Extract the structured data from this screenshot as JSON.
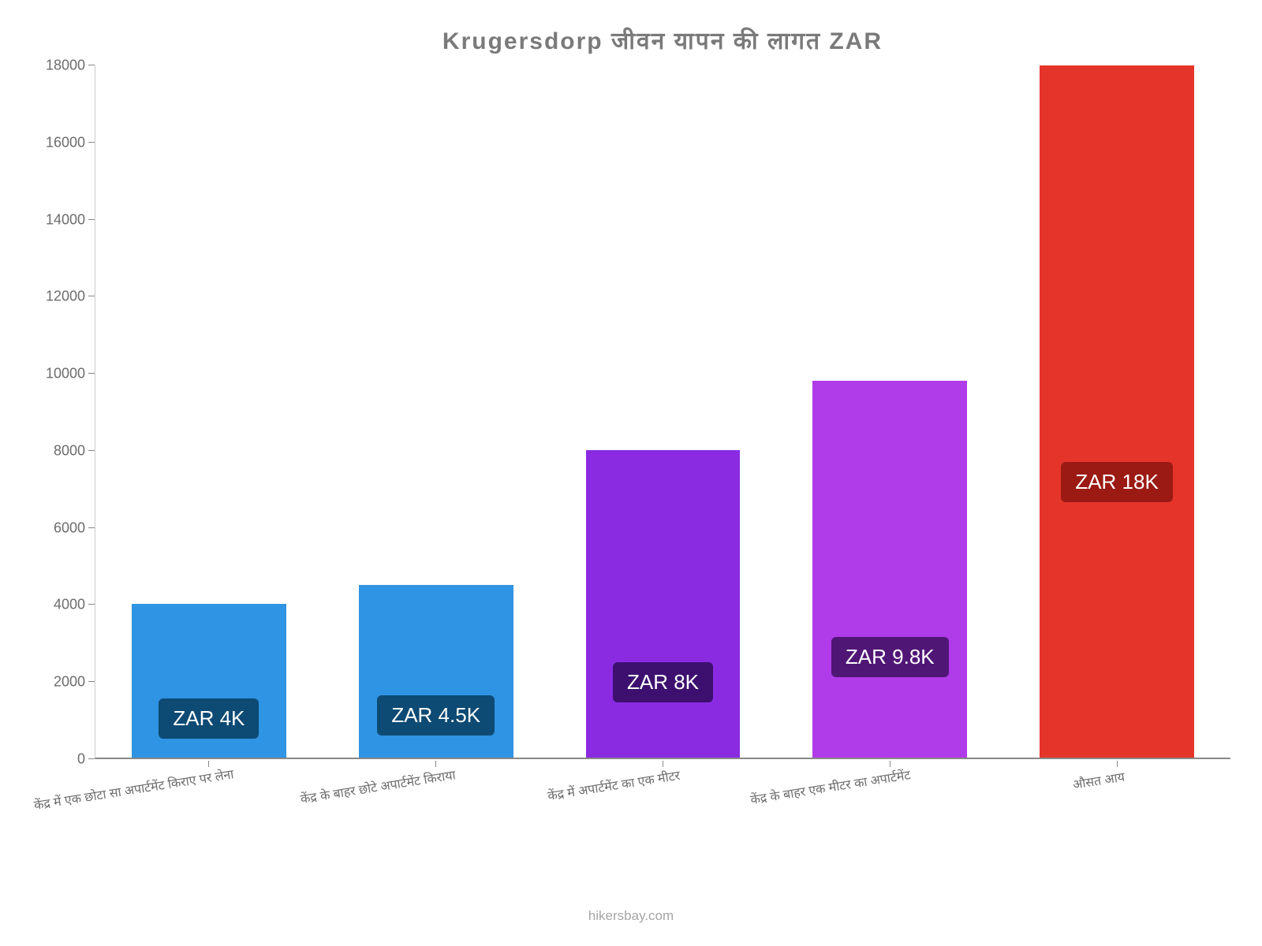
{
  "chart": {
    "type": "bar",
    "title": "Krugersdorp जीवन    यापन    की    लागत    ZAR",
    "title_color": "#7a7a7a",
    "title_fontsize": 30,
    "title_fontweight": "bold",
    "background_color": "#ffffff",
    "axis_color": "#888888",
    "ymin": 0,
    "ymax": 18000,
    "ytick_step": 2000,
    "ytick_labels": [
      "0",
      "2000",
      "4000",
      "6000",
      "8000",
      "10000",
      "12000",
      "14000",
      "16000",
      "18000"
    ],
    "ytick_fontsize": 18,
    "ytick_color": "#6c6c6c",
    "bar_width_pct": 68,
    "categories": [
      "केंद्र में एक छोटा सा अपार्टमेंट किराए पर लेना",
      "केंद्र के बाहर छोटे अपार्टमेंट किराया",
      "केंद्र में अपार्टमेंट का एक मीटर",
      "केंद्र के बाहर एक मीटर का अपार्टमेंट",
      "औसत आय"
    ],
    "values": [
      4000,
      4500,
      8000,
      9800,
      18000
    ],
    "value_labels": [
      "ZAR 4K",
      "ZAR 4.5K",
      "ZAR 8K",
      "ZAR 9.8K",
      "ZAR 18K"
    ],
    "bar_colors": [
      "#2f94e3",
      "#2f94e3",
      "#8a2be2",
      "#b03be8",
      "#e5352b"
    ],
    "badge_bg_colors": [
      "#0d4a74",
      "#0d4a74",
      "#3d1070",
      "#501676",
      "#9b1a13"
    ],
    "badge_fontsize": 26,
    "badge_text_color": "#ffffff",
    "x_label_fontsize": 16,
    "x_label_color": "#6c6c6c",
    "x_label_rotation_deg": -9,
    "attribution": "hikersbay.com",
    "attribution_color": "#a6a6a6",
    "attribution_fontsize": 17
  }
}
